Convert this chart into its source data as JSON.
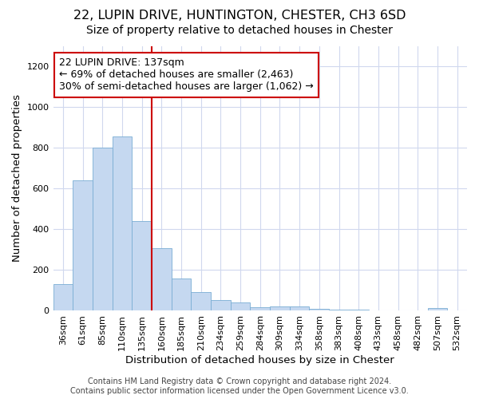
{
  "title": "22, LUPIN DRIVE, HUNTINGTON, CHESTER, CH3 6SD",
  "subtitle": "Size of property relative to detached houses in Chester",
  "xlabel": "Distribution of detached houses by size in Chester",
  "ylabel": "Number of detached properties",
  "footer_line1": "Contains HM Land Registry data © Crown copyright and database right 2024.",
  "footer_line2": "Contains public sector information licensed under the Open Government Licence v3.0.",
  "bar_labels": [
    "36sqm",
    "61sqm",
    "85sqm",
    "110sqm",
    "135sqm",
    "160sqm",
    "185sqm",
    "210sqm",
    "234sqm",
    "259sqm",
    "284sqm",
    "309sqm",
    "334sqm",
    "358sqm",
    "383sqm",
    "408sqm",
    "433sqm",
    "458sqm",
    "482sqm",
    "507sqm",
    "532sqm"
  ],
  "bar_values": [
    130,
    640,
    800,
    855,
    440,
    305,
    158,
    92,
    52,
    40,
    15,
    20,
    20,
    8,
    5,
    5,
    0,
    0,
    0,
    10,
    0
  ],
  "bar_color": "#c5d8f0",
  "bar_edgecolor": "#7aadd4",
  "highlight_index": 4,
  "highlight_color": "#cc0000",
  "annotation_text": "22 LUPIN DRIVE: 137sqm\n← 69% of detached houses are smaller (2,463)\n30% of semi-detached houses are larger (1,062) →",
  "annotation_box_color": "#ffffff",
  "annotation_box_edgecolor": "#cc0000",
  "ylim": [
    0,
    1300
  ],
  "yticks": [
    0,
    200,
    400,
    600,
    800,
    1000,
    1200
  ],
  "title_fontsize": 11.5,
  "subtitle_fontsize": 10,
  "axis_label_fontsize": 9.5,
  "tick_fontsize": 8,
  "annotation_fontsize": 9,
  "footer_fontsize": 7,
  "background_color": "#ffffff",
  "grid_color": "#d0d8ee"
}
